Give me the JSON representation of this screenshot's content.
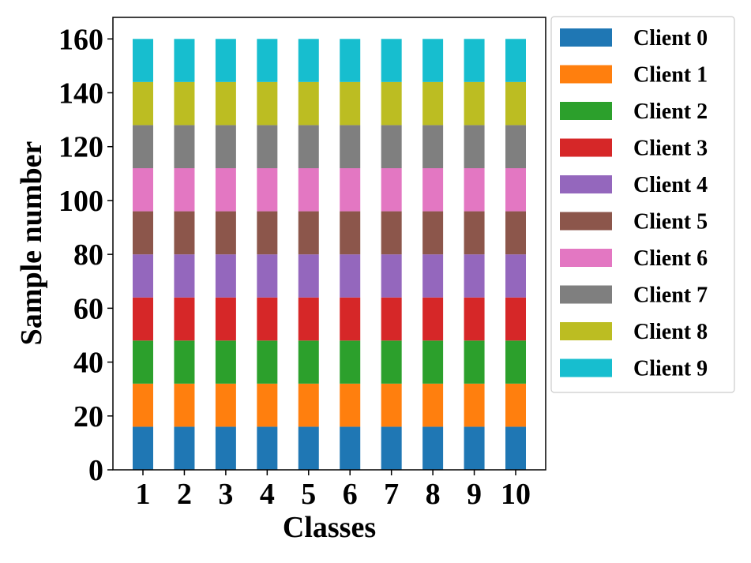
{
  "chart_data": {
    "type": "bar",
    "stacked": true,
    "categories": [
      "1",
      "2",
      "3",
      "4",
      "5",
      "6",
      "7",
      "8",
      "9",
      "10"
    ],
    "xlabel": "Classes",
    "ylabel": "Sample number",
    "ylim": [
      0,
      168
    ],
    "yticks": [
      "0",
      "20",
      "40",
      "60",
      "80",
      "100",
      "120",
      "140",
      "160"
    ],
    "grid": false,
    "legend_position": "outside-right-top",
    "series": [
      {
        "name": "Client 0",
        "color": "#1f77b4",
        "values": [
          16,
          16,
          16,
          16,
          16,
          16,
          16,
          16,
          16,
          16
        ]
      },
      {
        "name": "Client 1",
        "color": "#ff7f0e",
        "values": [
          16,
          16,
          16,
          16,
          16,
          16,
          16,
          16,
          16,
          16
        ]
      },
      {
        "name": "Client 2",
        "color": "#2ca02c",
        "values": [
          16,
          16,
          16,
          16,
          16,
          16,
          16,
          16,
          16,
          16
        ]
      },
      {
        "name": "Client 3",
        "color": "#d62728",
        "values": [
          16,
          16,
          16,
          16,
          16,
          16,
          16,
          16,
          16,
          16
        ]
      },
      {
        "name": "Client 4",
        "color": "#9467bd",
        "values": [
          16,
          16,
          16,
          16,
          16,
          16,
          16,
          16,
          16,
          16
        ]
      },
      {
        "name": "Client 5",
        "color": "#8c564b",
        "values": [
          16,
          16,
          16,
          16,
          16,
          16,
          16,
          16,
          16,
          16
        ]
      },
      {
        "name": "Client 6",
        "color": "#e377c2",
        "values": [
          16,
          16,
          16,
          16,
          16,
          16,
          16,
          16,
          16,
          16
        ]
      },
      {
        "name": "Client 7",
        "color": "#7f7f7f",
        "values": [
          16,
          16,
          16,
          16,
          16,
          16,
          16,
          16,
          16,
          16
        ]
      },
      {
        "name": "Client 8",
        "color": "#bcbd22",
        "values": [
          16,
          16,
          16,
          16,
          16,
          16,
          16,
          16,
          16,
          16
        ]
      },
      {
        "name": "Client 9",
        "color": "#17becf",
        "values": [
          16,
          16,
          16,
          16,
          16,
          16,
          16,
          16,
          16,
          16
        ]
      }
    ]
  }
}
